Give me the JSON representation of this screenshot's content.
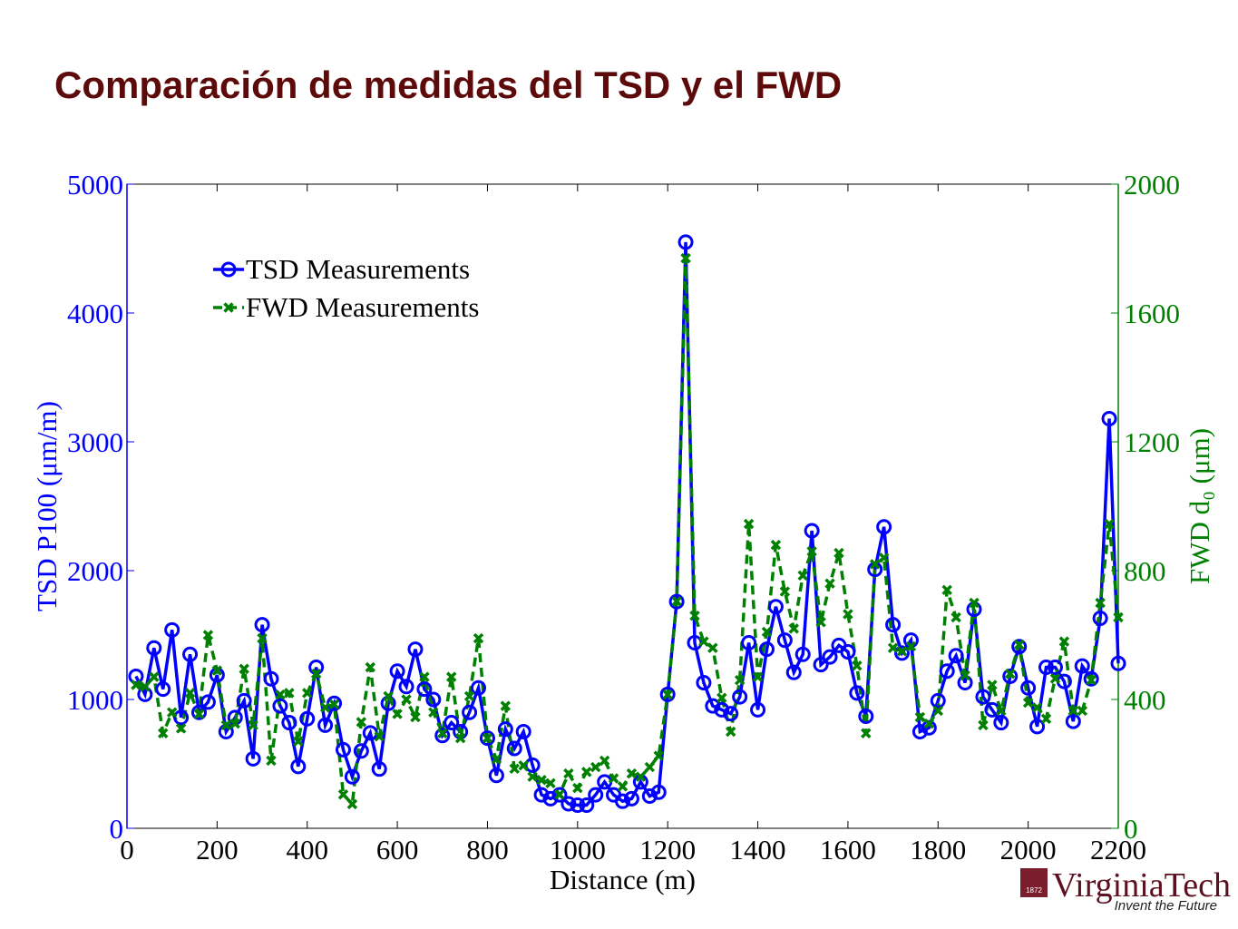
{
  "chart_data": {
    "type": "line",
    "title": "Comparación de medidas del TSD y el FWD",
    "xlabel": "Distance (m)",
    "ylabel": "TSD P100 (μm/m)",
    "y2label": "FWD d₀ (μm)",
    "x": [
      20,
      40,
      60,
      80,
      100,
      120,
      140,
      160,
      180,
      200,
      220,
      240,
      260,
      280,
      300,
      320,
      340,
      360,
      380,
      400,
      420,
      440,
      460,
      480,
      500,
      520,
      540,
      560,
      580,
      600,
      620,
      640,
      660,
      680,
      700,
      720,
      740,
      760,
      780,
      800,
      820,
      840,
      860,
      880,
      900,
      920,
      940,
      960,
      980,
      1000,
      1020,
      1040,
      1060,
      1080,
      1100,
      1120,
      1140,
      1160,
      1180,
      1200,
      1220,
      1240,
      1260,
      1280,
      1300,
      1320,
      1340,
      1360,
      1380,
      1400,
      1420,
      1440,
      1460,
      1480,
      1500,
      1520,
      1540,
      1560,
      1580,
      1600,
      1620,
      1640,
      1660,
      1680,
      1700,
      1720,
      1740,
      1760,
      1780,
      1800,
      1820,
      1840,
      1860,
      1880,
      1900,
      1920,
      1940,
      1960,
      1980,
      2000,
      2020,
      2040,
      2060,
      2080,
      2100,
      2120,
      2140,
      2160,
      2180,
      2200
    ],
    "series": [
      {
        "name": "TSD Measurements",
        "color": "#0000ff",
        "marker": "circle",
        "linestyle": "solid",
        "values": [
          1180,
          1040,
          1400,
          1080,
          1540,
          860,
          1350,
          900,
          980,
          1190,
          750,
          860,
          990,
          540,
          1580,
          1160,
          950,
          820,
          480,
          850,
          1250,
          800,
          970,
          610,
          400,
          600,
          740,
          460,
          970,
          1220,
          1100,
          1390,
          1080,
          1000,
          720,
          820,
          750,
          900,
          1090,
          700,
          410,
          770,
          620,
          750,
          490,
          260,
          230,
          260,
          190,
          180,
          180,
          260,
          360,
          260,
          210,
          230,
          360,
          250,
          280,
          1040,
          1760,
          4550,
          1440,
          1130,
          950,
          920,
          890,
          1020,
          1440,
          920,
          1390,
          1720,
          1460,
          1210,
          1350,
          2310,
          1270,
          1330,
          1420,
          1370,
          1050,
          870,
          2010,
          2340,
          1580,
          1360,
          1460,
          750,
          780,
          990,
          1220,
          1340,
          1130,
          1700,
          1020,
          920,
          820,
          1180,
          1410,
          1090,
          790,
          1250,
          1250,
          1140,
          830,
          1260,
          1160,
          1630,
          3180,
          1280
        ]
      },
      {
        "name": "FWD Measurements",
        "color": "#008000",
        "marker": "x",
        "linestyle": "dashed",
        "axis": "y2",
        "values": [
          445,
          440,
          470,
          295,
          360,
          310,
          420,
          355,
          600,
          490,
          320,
          325,
          495,
          320,
          590,
          210,
          415,
          420,
          270,
          420,
          480,
          375,
          385,
          105,
          75,
          330,
          500,
          285,
          410,
          355,
          400,
          345,
          470,
          360,
          295,
          470,
          280,
          410,
          590,
          280,
          215,
          380,
          185,
          195,
          160,
          150,
          140,
          105,
          170,
          125,
          175,
          190,
          210,
          155,
          130,
          170,
          160,
          190,
          225,
          415,
          705,
          1770,
          660,
          580,
          560,
          405,
          300,
          460,
          945,
          470,
          610,
          880,
          735,
          620,
          785,
          860,
          640,
          760,
          855,
          665,
          505,
          295,
          820,
          840,
          560,
          550,
          565,
          345,
          325,
          365,
          740,
          655,
          475,
          700,
          320,
          445,
          365,
          480,
          570,
          390,
          375,
          340,
          465,
          580,
          365,
          365,
          460,
          700,
          945,
          655
        ]
      }
    ],
    "xlim": [
      0,
      2200
    ],
    "xticks": [
      0,
      200,
      400,
      600,
      800,
      1000,
      1200,
      1400,
      1600,
      1800,
      2000,
      2200
    ],
    "ylim": [
      0,
      5000
    ],
    "yticks": [
      0,
      1000,
      2000,
      3000,
      4000,
      5000
    ],
    "y2lim": [
      0,
      2000
    ],
    "y2ticks": [
      0,
      400,
      800,
      1200,
      1600,
      2000
    ],
    "ycolor": "#0000ff",
    "y2color": "#008000",
    "legend": "upper left",
    "grid": false
  },
  "logo": {
    "year": "1872",
    "name": "VirginiaTech",
    "tagline": "Invent the Future"
  }
}
